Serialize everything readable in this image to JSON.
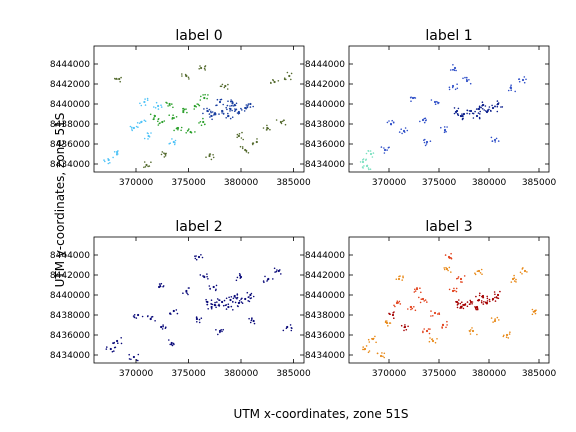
{
  "figure": {
    "xlabel": "UTM x-coordinates, zone 51S",
    "ylabel": "UTM y-coordinates, zone 51S"
  },
  "chart_data": [
    {
      "type": "scatter",
      "title": "label 0",
      "xlim": [
        366000,
        386000
      ],
      "ylim": [
        8433200,
        8445800
      ],
      "xticks": [
        "370000",
        "375000",
        "380000",
        "385000"
      ],
      "yticks": [
        "8434000",
        "8436000",
        "8438000",
        "8440000",
        "8442000",
        "8444000"
      ],
      "grid": false,
      "series": [
        {
          "color": "#1a3fa0",
          "points": [
            [
              377500,
              8439000
            ],
            [
              378200,
              8439300
            ],
            [
              379000,
              8439500
            ],
            [
              379800,
              8439200
            ],
            [
              380400,
              8439600
            ],
            [
              378800,
              8438800
            ],
            [
              377200,
              8438800
            ],
            [
              379400,
              8439900
            ],
            [
              376800,
              8439300
            ],
            [
              378000,
              8440200
            ],
            [
              380900,
              8440000
            ],
            [
              379200,
              8440100
            ]
          ]
        },
        {
          "color": "#2ca02c",
          "points": [
            [
              372500,
              8438200
            ],
            [
              373500,
              8438600
            ],
            [
              374500,
              8439200
            ],
            [
              375600,
              8439800
            ],
            [
              376400,
              8438200
            ],
            [
              375200,
              8437200
            ],
            [
              374000,
              8437600
            ],
            [
              371800,
              8438800
            ],
            [
              373200,
              8440000
            ],
            [
              376500,
              8440600
            ]
          ]
        },
        {
          "color": "#4fc3f7",
          "points": [
            [
              369800,
              8437600
            ],
            [
              370500,
              8438200
            ],
            [
              371200,
              8436800
            ],
            [
              372100,
              8439800
            ],
            [
              368200,
              8435200
            ],
            [
              367400,
              8434400
            ],
            [
              370800,
              8440200
            ],
            [
              373600,
              8436200
            ]
          ]
        },
        {
          "color": "#556b2f",
          "points": [
            [
              381500,
              8436200
            ],
            [
              383200,
              8442200
            ],
            [
              382500,
              8437600
            ],
            [
              378500,
              8441800
            ],
            [
              374800,
              8442800
            ],
            [
              376200,
              8443600
            ],
            [
              372800,
              8435000
            ],
            [
              380400,
              8435400
            ],
            [
              384600,
              8442800
            ],
            [
              368400,
              8442500
            ],
            [
              377000,
              8434800
            ],
            [
              371000,
              8433900
            ],
            [
              379800,
              8436800
            ],
            [
              383800,
              8438200
            ]
          ]
        }
      ]
    },
    {
      "type": "scatter",
      "title": "label 1",
      "xlim": [
        366000,
        386000
      ],
      "ylim": [
        8433200,
        8445800
      ],
      "xticks": [
        "370000",
        "375000",
        "380000",
        "385000"
      ],
      "yticks": [
        "8434000",
        "8436000",
        "8438000",
        "8440000",
        "8442000",
        "8444000"
      ],
      "grid": false,
      "series": [
        {
          "color": "#0b1f8c",
          "points": [
            [
              377500,
              8439000
            ],
            [
              378200,
              8439300
            ],
            [
              379000,
              8439500
            ],
            [
              379800,
              8439200
            ],
            [
              380400,
              8439600
            ],
            [
              378800,
              8438800
            ],
            [
              377200,
              8438800
            ],
            [
              379400,
              8439900
            ],
            [
              376800,
              8439300
            ],
            [
              380900,
              8440000
            ]
          ]
        },
        {
          "color": "#3050c8",
          "points": [
            [
              370200,
              8438000
            ],
            [
              371500,
              8437300
            ],
            [
              373400,
              8438400
            ],
            [
              374600,
              8440200
            ],
            [
              375600,
              8437400
            ],
            [
              376400,
              8441800
            ],
            [
              372400,
              8440600
            ],
            [
              376600,
              8443600
            ],
            [
              377800,
              8442300
            ],
            [
              380600,
              8436400
            ],
            [
              382200,
              8441600
            ],
            [
              383400,
              8442400
            ],
            [
              369600,
              8435400
            ],
            [
              373800,
              8436200
            ]
          ]
        },
        {
          "color": "#7be0c0",
          "points": [
            [
              367400,
              8434200
            ],
            [
              368200,
              8435000
            ],
            [
              367800,
              8433800
            ]
          ]
        }
      ]
    },
    {
      "type": "scatter",
      "title": "label 2",
      "xlim": [
        366000,
        386000
      ],
      "ylim": [
        8433200,
        8445800
      ],
      "xticks": [
        "370000",
        "375000",
        "380000",
        "385000"
      ],
      "yticks": [
        "8434000",
        "8436000",
        "8438000",
        "8440000",
        "8442000",
        "8444000"
      ],
      "grid": false,
      "series": [
        {
          "color": "#0b0b7a",
          "points": [
            [
              377500,
              8439000
            ],
            [
              378200,
              8439300
            ],
            [
              379000,
              8439500
            ],
            [
              379800,
              8439200
            ],
            [
              380400,
              8439600
            ],
            [
              378800,
              8438800
            ],
            [
              377200,
              8438800
            ],
            [
              379400,
              8439900
            ],
            [
              376800,
              8439300
            ],
            [
              380900,
              8440000
            ],
            [
              370200,
              8438000
            ],
            [
              371400,
              8437600
            ],
            [
              372400,
              8436800
            ],
            [
              373600,
              8438400
            ],
            [
              374800,
              8440400
            ],
            [
              375800,
              8437600
            ],
            [
              376500,
              8441800
            ],
            [
              377400,
              8440800
            ],
            [
              372200,
              8440800
            ],
            [
              376000,
              8443800
            ],
            [
              381200,
              8437400
            ],
            [
              382600,
              8441600
            ],
            [
              383600,
              8442400
            ],
            [
              368200,
              8435400
            ],
            [
              367600,
              8434600
            ],
            [
              369800,
              8433800
            ],
            [
              373400,
              8435200
            ],
            [
              378000,
              8436400
            ],
            [
              380000,
              8441800
            ],
            [
              384400,
              8436800
            ]
          ]
        }
      ]
    },
    {
      "type": "scatter",
      "title": "label 3",
      "xlim": [
        366000,
        386000
      ],
      "ylim": [
        8433200,
        8445800
      ],
      "xticks": [
        "370000",
        "375000",
        "380000",
        "385000"
      ],
      "yticks": [
        "8434000",
        "8436000",
        "8438000",
        "8440000",
        "8442000",
        "8444000"
      ],
      "grid": false,
      "series": [
        {
          "color": "#a40000",
          "points": [
            [
              377500,
              8439000
            ],
            [
              378200,
              8439300
            ],
            [
              379000,
              8439500
            ],
            [
              379800,
              8439200
            ],
            [
              380400,
              8439600
            ],
            [
              378800,
              8438800
            ],
            [
              377200,
              8438800
            ],
            [
              379400,
              8439900
            ],
            [
              376800,
              8439300
            ],
            [
              380900,
              8440000
            ],
            [
              370400,
              8438000
            ],
            [
              371600,
              8436800
            ]
          ]
        },
        {
          "color": "#e2401a",
          "points": [
            [
              372200,
              8438800
            ],
            [
              373400,
              8439600
            ],
            [
              374600,
              8438200
            ],
            [
              375400,
              8437000
            ],
            [
              376400,
              8440400
            ],
            [
              370800,
              8439200
            ],
            [
              373800,
              8436400
            ],
            [
              376000,
              8443800
            ],
            [
              377200,
              8441600
            ],
            [
              372800,
              8440600
            ]
          ]
        },
        {
          "color": "#e88a1a",
          "points": [
            [
              369800,
              8437200
            ],
            [
              368400,
              8435600
            ],
            [
              367600,
              8434600
            ],
            [
              369200,
              8433900
            ],
            [
              374400,
              8435400
            ],
            [
              378400,
              8436400
            ],
            [
              380600,
              8437400
            ],
            [
              382400,
              8441600
            ],
            [
              383600,
              8442400
            ],
            [
              381800,
              8436000
            ],
            [
              375800,
              8442600
            ],
            [
              371000,
              8441600
            ],
            [
              379000,
              8442400
            ],
            [
              384600,
              8438400
            ]
          ]
        }
      ]
    }
  ]
}
